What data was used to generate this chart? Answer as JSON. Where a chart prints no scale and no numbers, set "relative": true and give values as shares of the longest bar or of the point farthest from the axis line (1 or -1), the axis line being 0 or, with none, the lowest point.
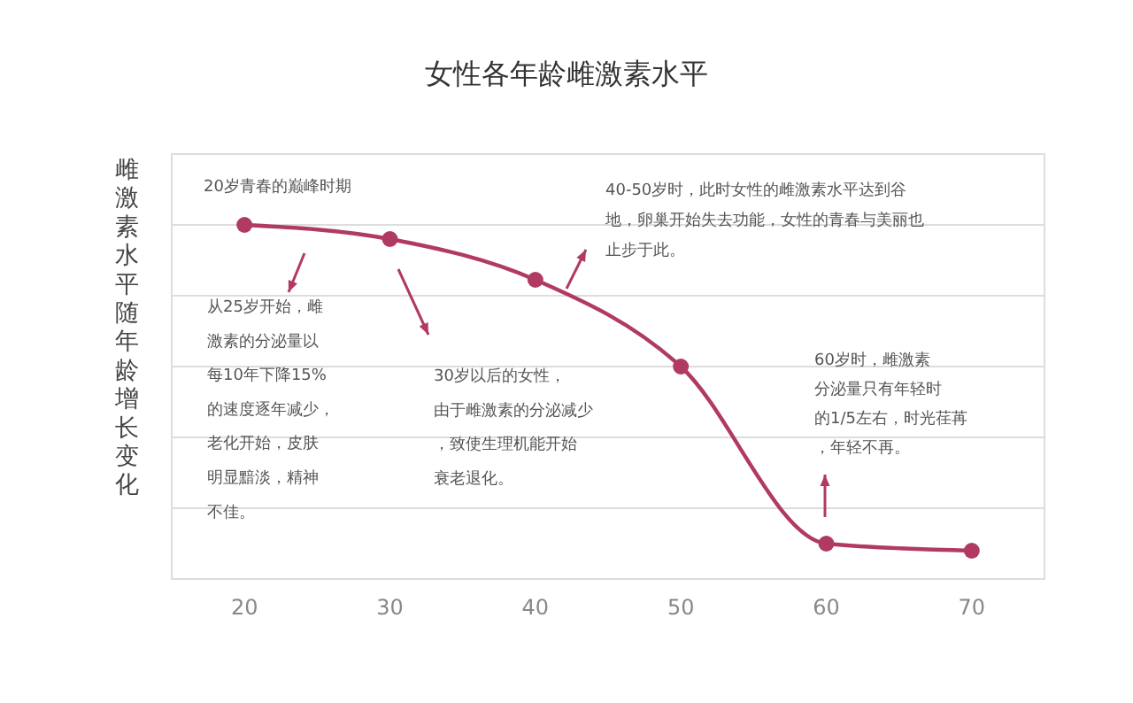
{
  "chart_data": {
    "type": "line",
    "title": "女性各年龄雌激素水平",
    "ylabel": "雌激素水平随年龄增长变化",
    "x": [
      20,
      30,
      40,
      50,
      60,
      70
    ],
    "xlim": [
      15,
      75
    ],
    "xticks": [
      20,
      30,
      40,
      50,
      60,
      70
    ],
    "relative": true,
    "grid": "y",
    "marker": "circle",
    "line_style": "solid",
    "series": [
      {
        "color": "#b03a62",
        "values": [
          1,
          0.96,
          0.845,
          0.6,
          0.1,
          0.08
        ]
      }
    ],
    "annotations": [
      "20岁青春的巅峰时期",
      "从25岁开始，雌激素的分泌量以每10年下降15%的速度逐年减少，老化开始，皮肤明显黯淡，精神不佳。",
      "30岁以后的女性，由于雌激素的分泌减少，致使生理机能开始衰老退化。",
      "40-50岁时，此时女性的雌激素水平达到谷地，卵巢开始失去功能，女性的青春与美丽也止步于此。",
      "60岁时，雌激素分泌量只有年轻时的1/5左右，时光荏苒，年轻不再。"
    ]
  }
}
